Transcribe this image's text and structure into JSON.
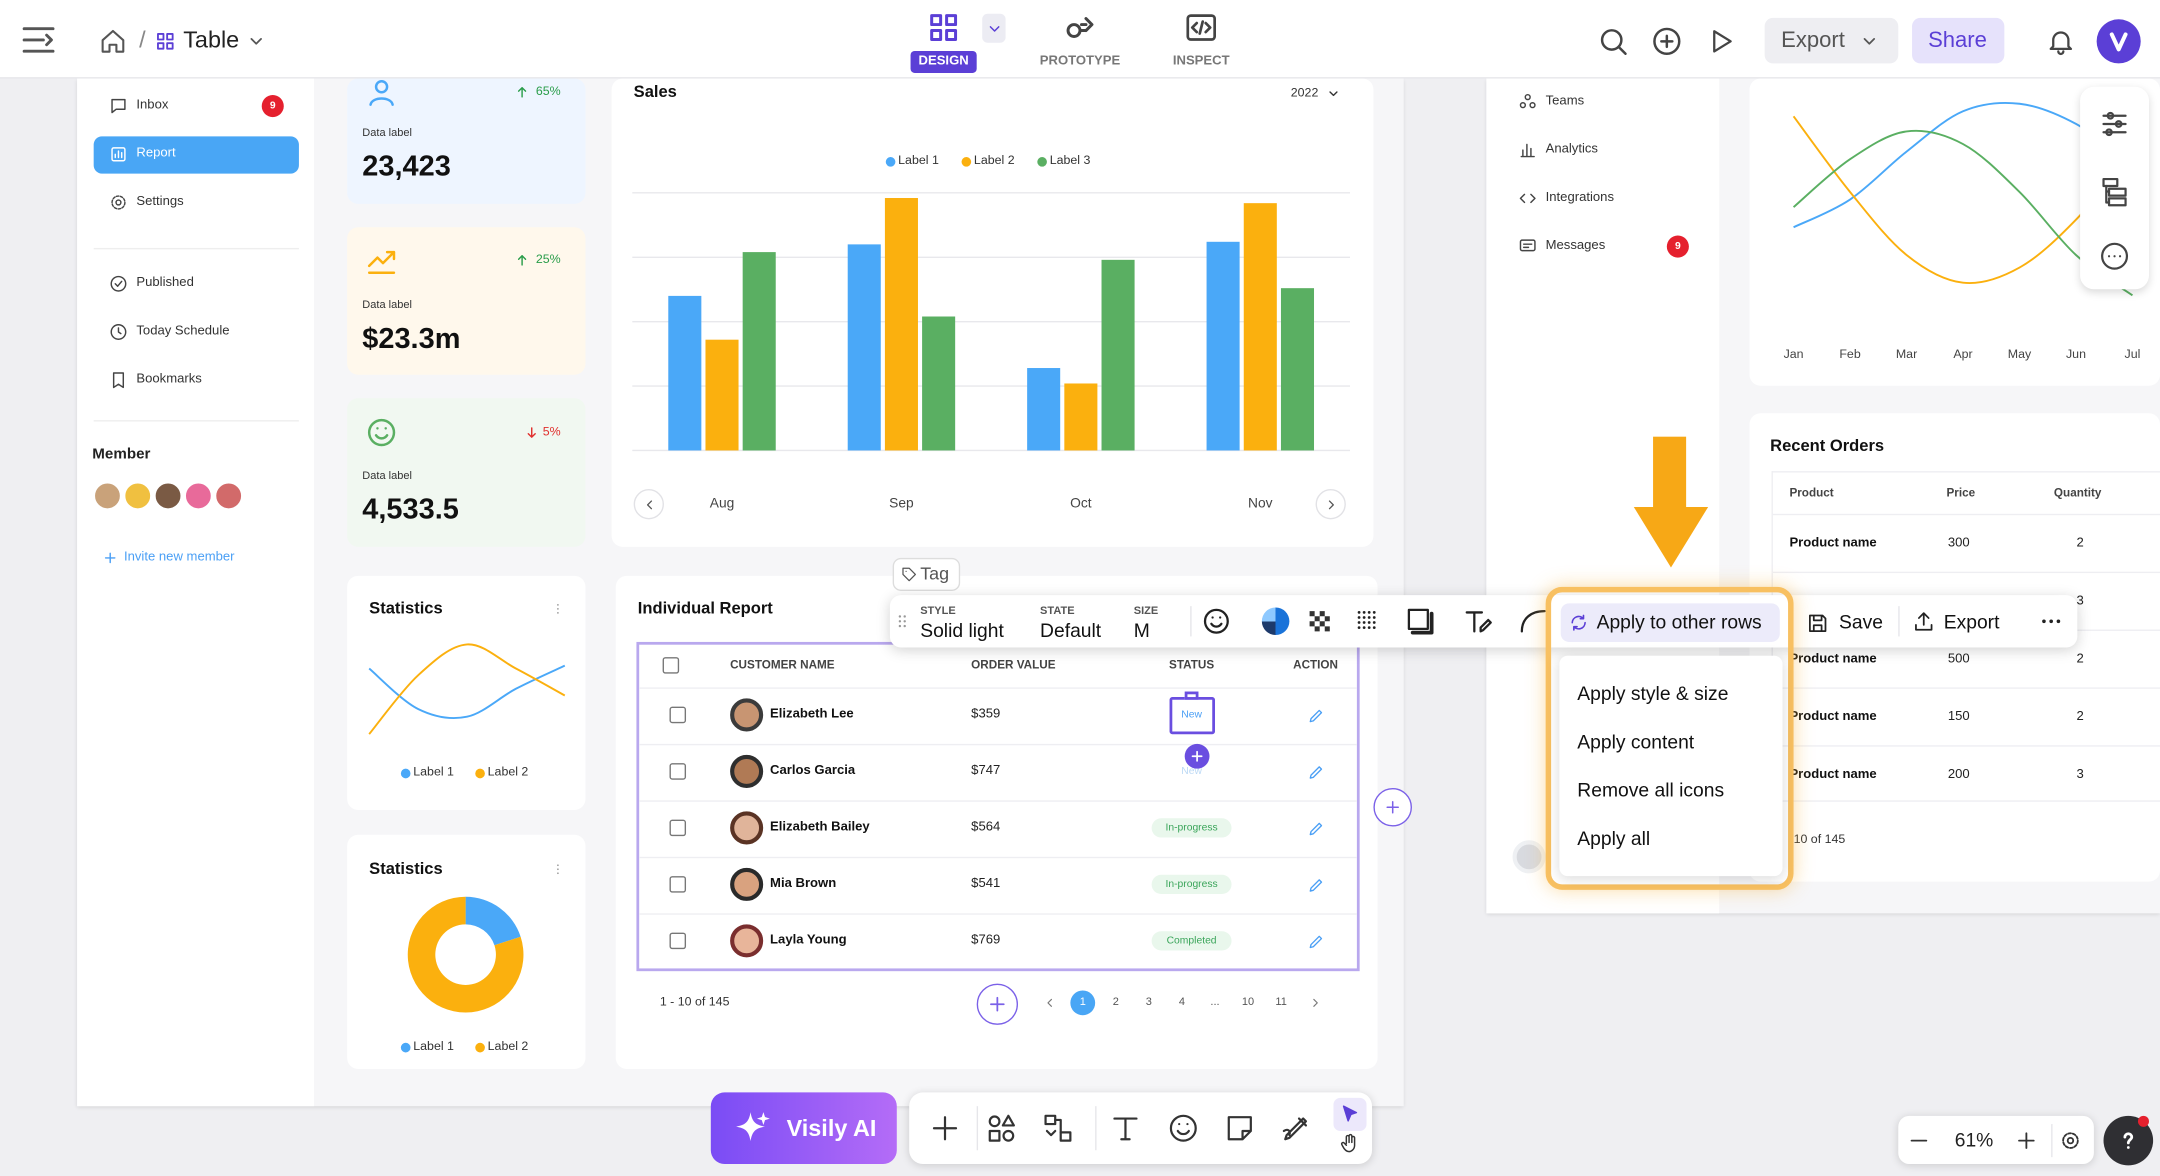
{
  "topbar": {
    "breadcrumb_separator": "/",
    "title": "Table",
    "tabs": [
      "DESIGN",
      "PROTOTYPE",
      "INSPECT"
    ],
    "export": "Export",
    "share": "Share"
  },
  "sidebar": {
    "items": [
      "Inbox",
      "Report",
      "Settings",
      "Published",
      "Today Schedule",
      "Bookmarks"
    ],
    "inbox_badge": "9",
    "member_title": "Member",
    "invite": "Invite new member"
  },
  "stat_cards": [
    {
      "change": "65%",
      "label": "Data label",
      "value": "23,423"
    },
    {
      "change": "25%",
      "label": "Data label",
      "value": "$23.3m"
    },
    {
      "change": "5%",
      "label": "Data label",
      "value": "4,533.5"
    }
  ],
  "chart_data": [
    {
      "type": "bar",
      "title": "Sales",
      "filter": "2022",
      "categories": [
        "Aug",
        "Sep",
        "Oct",
        "Nov"
      ],
      "series": [
        {
          "name": "Label 1",
          "color": "#4aa8f8",
          "values": [
            60,
            80,
            32,
            81
          ]
        },
        {
          "name": "Label 2",
          "color": "#fbb00e",
          "values": [
            43,
            98,
            26,
            96
          ]
        },
        {
          "name": "Label 3",
          "color": "#5aaf62",
          "values": [
            77,
            52,
            74,
            63
          ]
        }
      ],
      "ylim": [
        0,
        100
      ],
      "grid": true
    },
    {
      "type": "line",
      "title": "Statistics",
      "series": [
        {
          "name": "Label 1",
          "color": "#4aa8f8",
          "values": [
            71,
            29,
            21,
            50,
            74
          ]
        },
        {
          "name": "Label 2",
          "color": "#fbb00e",
          "values": [
            3,
            64,
            96,
            71,
            43
          ]
        }
      ],
      "ylim": [
        0,
        100
      ]
    },
    {
      "type": "donut",
      "title": "Statistics",
      "categories": [
        "Label 1",
        "Label 2"
      ],
      "values": [
        20,
        80
      ],
      "colors": [
        "#4aa8f8",
        "#fbb00e"
      ]
    },
    {
      "type": "line",
      "categories": [
        "Jan",
        "Feb",
        "Mar",
        "Apr",
        "May",
        "Jun",
        "Jul"
      ],
      "series": [
        {
          "color": "#4aa8f8",
          "values": [
            41,
            52,
            71,
            87,
            90,
            82,
            66
          ]
        },
        {
          "color": "#fbb00e",
          "values": [
            85,
            55,
            30,
            19,
            25,
            44,
            71
          ]
        },
        {
          "color": "#5aaf62",
          "values": [
            49,
            68,
            79,
            74,
            55,
            30,
            14
          ]
        }
      ],
      "ylim": [
        0,
        100
      ]
    }
  ],
  "report": {
    "title": "Individual Report",
    "tag": "Tag",
    "columns": [
      "CUSTOMER NAME",
      "ORDER VALUE",
      "STATUS",
      "ACTION"
    ],
    "rows": [
      [
        "Elizabeth Lee",
        "$359",
        "New"
      ],
      [
        "Carlos Garcia",
        "$747",
        "New"
      ],
      [
        "Elizabeth Bailey",
        "$564",
        "In-progress"
      ],
      [
        "Mia Brown",
        "$541",
        "In-progress"
      ],
      [
        "Layla Young",
        "$769",
        "Completed"
      ]
    ],
    "pagination": {
      "summary": "1 - 10 of 145",
      "pages": [
        "1",
        "2",
        "3",
        "4",
        "...",
        "10",
        "11"
      ]
    }
  },
  "toolbar": {
    "style_label": "STYLE",
    "style": "Solid light",
    "state_label": "STATE",
    "state": "Default",
    "size_label": "SIZE",
    "size": "M",
    "apply": "Apply to other rows",
    "save": "Save",
    "export": "Export"
  },
  "apply_menu": [
    "Apply style & size",
    "Apply content",
    "Remove all icons",
    "Apply all"
  ],
  "right_nav": {
    "items": [
      "Teams",
      "Analytics",
      "Integrations",
      "Messages"
    ],
    "messages_badge": "9"
  },
  "recent_orders": {
    "title": "Recent Orders",
    "columns": [
      "Product",
      "Price",
      "Quantity"
    ],
    "rows": [
      {
        "product": "Product name",
        "price": "300",
        "quantity": "2"
      },
      {
        "quantity": "3"
      },
      {
        "product": "Product name",
        "price": "500",
        "quantity": "2"
      },
      {
        "product": "Product name",
        "price": "150",
        "quantity": "2"
      },
      {
        "product": "Product name",
        "price": "200",
        "quantity": "3"
      }
    ],
    "summary": "10 of 145"
  },
  "bottom": {
    "ai": "Visily AI",
    "zoom": "61%"
  }
}
